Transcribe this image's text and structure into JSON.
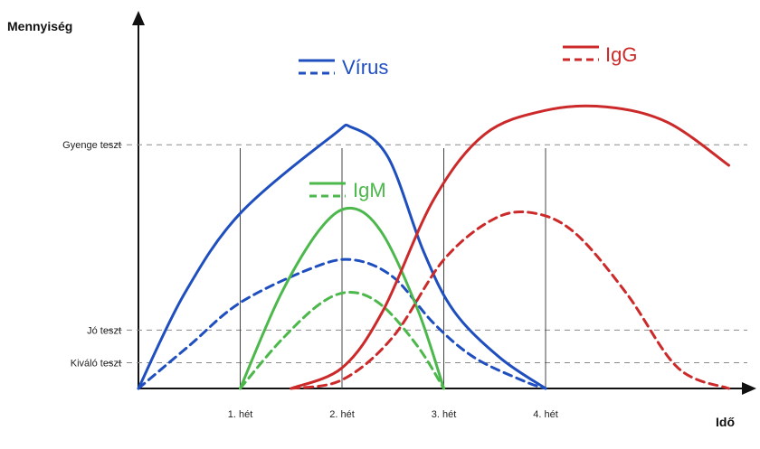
{
  "chart_data": {
    "type": "line",
    "ylabel": "Mennyiség",
    "xlabel": "Idő",
    "x_ticks": [
      "1. hét",
      "2. hét",
      "3. hét",
      "4. hét"
    ],
    "reference_lines": [
      {
        "label": "Gyenge teszt"
      },
      {
        "label": "Jó teszt"
      },
      {
        "label": "Kiváló teszt"
      }
    ],
    "legend": [
      {
        "name": "Vírus",
        "color": "#1f4fbf"
      },
      {
        "name": "IgM",
        "color": "#4cb84c"
      },
      {
        "name": "IgG",
        "color": "#cc2a2a"
      }
    ],
    "series": [
      {
        "name": "Vírus",
        "style": "solid",
        "color": "#1f4fbf",
        "points": [
          [
            0,
            0
          ],
          [
            0.45,
            0.55
          ],
          [
            1.0,
            1.02
          ],
          [
            1.9,
            1.47
          ],
          [
            2.1,
            1.52
          ],
          [
            2.45,
            1.35
          ],
          [
            2.8,
            0.8
          ],
          [
            3.1,
            0.45
          ],
          [
            3.55,
            0.18
          ],
          [
            4.0,
            0
          ]
        ]
      },
      {
        "name": "Vírus",
        "style": "dashed",
        "color": "#1f4fbf",
        "points": [
          [
            0,
            0
          ],
          [
            0.5,
            0.25
          ],
          [
            1.0,
            0.5
          ],
          [
            1.7,
            0.7
          ],
          [
            2.1,
            0.75
          ],
          [
            2.5,
            0.65
          ],
          [
            2.9,
            0.38
          ],
          [
            3.3,
            0.18
          ],
          [
            3.8,
            0.04
          ],
          [
            4.0,
            0
          ]
        ]
      },
      {
        "name": "IgM",
        "style": "solid",
        "color": "#4cb84c",
        "points": [
          [
            1.0,
            0
          ],
          [
            1.4,
            0.55
          ],
          [
            1.8,
            0.94
          ],
          [
            2.1,
            1.05
          ],
          [
            2.4,
            0.9
          ],
          [
            2.75,
            0.45
          ],
          [
            3.0,
            0
          ]
        ]
      },
      {
        "name": "IgM",
        "style": "dashed",
        "color": "#4cb84c",
        "points": [
          [
            1.0,
            0
          ],
          [
            1.4,
            0.28
          ],
          [
            1.8,
            0.5
          ],
          [
            2.1,
            0.56
          ],
          [
            2.4,
            0.48
          ],
          [
            2.75,
            0.24
          ],
          [
            3.0,
            0
          ]
        ]
      },
      {
        "name": "IgG",
        "style": "solid",
        "color": "#cc2a2a",
        "points": [
          [
            1.5,
            0
          ],
          [
            2.0,
            0.12
          ],
          [
            2.4,
            0.45
          ],
          [
            2.9,
            1.1
          ],
          [
            3.4,
            1.48
          ],
          [
            4.0,
            1.62
          ],
          [
            4.6,
            1.64
          ],
          [
            5.2,
            1.55
          ],
          [
            5.8,
            1.3
          ]
        ]
      },
      {
        "name": "IgG",
        "style": "dashed",
        "color": "#cc2a2a",
        "points": [
          [
            1.5,
            0
          ],
          [
            2.0,
            0.05
          ],
          [
            2.5,
            0.3
          ],
          [
            3.0,
            0.75
          ],
          [
            3.5,
            0.99
          ],
          [
            3.9,
            1.02
          ],
          [
            4.3,
            0.9
          ],
          [
            4.8,
            0.55
          ],
          [
            5.3,
            0.12
          ],
          [
            5.8,
            0
          ]
        ]
      }
    ]
  }
}
